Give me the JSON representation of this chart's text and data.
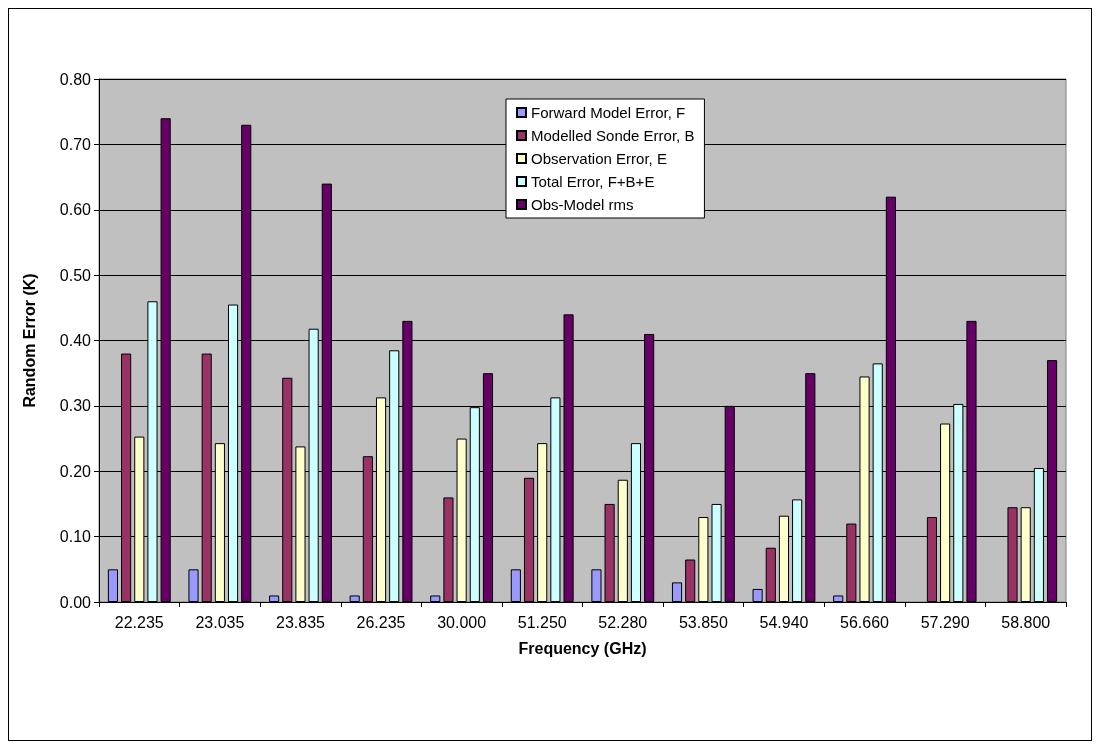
{
  "chart_data": {
    "type": "bar",
    "xlabel": "Frequency (GHz)",
    "ylabel": "Random Error (K)",
    "categories": [
      "22.235",
      "23.035",
      "23.835",
      "26.235",
      "30.000",
      "51.250",
      "52.280",
      "53.850",
      "54.940",
      "56.660",
      "57.290",
      "58.800"
    ],
    "series": [
      {
        "name": "Forward Model Error, F",
        "color": "#9999ff",
        "values": [
          0.05,
          0.05,
          0.01,
          0.01,
          0.01,
          0.05,
          0.05,
          0.03,
          0.02,
          0.01,
          null,
          null
        ]
      },
      {
        "name": "Modelled Sonde Error, B",
        "color": "#993366",
        "values": [
          0.38,
          0.38,
          0.343,
          0.223,
          0.16,
          0.19,
          0.15,
          0.065,
          0.083,
          0.12,
          0.13,
          0.145
        ]
      },
      {
        "name": "Observation Error, E",
        "color": "#ffffcc",
        "values": [
          0.253,
          0.243,
          0.238,
          0.313,
          0.25,
          0.243,
          0.187,
          0.13,
          0.132,
          0.345,
          0.273,
          0.145
        ]
      },
      {
        "name": "Total Error, F+B+E",
        "color": "#ccffff",
        "values": [
          0.46,
          0.455,
          0.418,
          0.385,
          0.298,
          0.313,
          0.243,
          0.15,
          0.157,
          0.365,
          0.303,
          0.205
        ]
      },
      {
        "name": "Obs-Model rms",
        "color": "#660066",
        "values": [
          0.74,
          0.73,
          0.64,
          0.43,
          0.35,
          0.44,
          0.41,
          0.3,
          0.35,
          0.62,
          0.43,
          0.37
        ]
      }
    ],
    "ylim": [
      0,
      0.8
    ],
    "yticks": [
      {
        "value": 0,
        "label": "0.00"
      },
      {
        "value": 0.1,
        "label": "0.10"
      },
      {
        "value": 0.2,
        "label": "0.20"
      },
      {
        "value": 0.3,
        "label": "0.30"
      },
      {
        "value": 0.4,
        "label": "0.40"
      },
      {
        "value": 0.5,
        "label": "0.50"
      },
      {
        "value": 0.6,
        "label": "0.60"
      },
      {
        "value": 0.7,
        "label": "0.70"
      },
      {
        "value": 0.8,
        "label": "0.80"
      }
    ],
    "grid": "y",
    "legend": "top right"
  }
}
